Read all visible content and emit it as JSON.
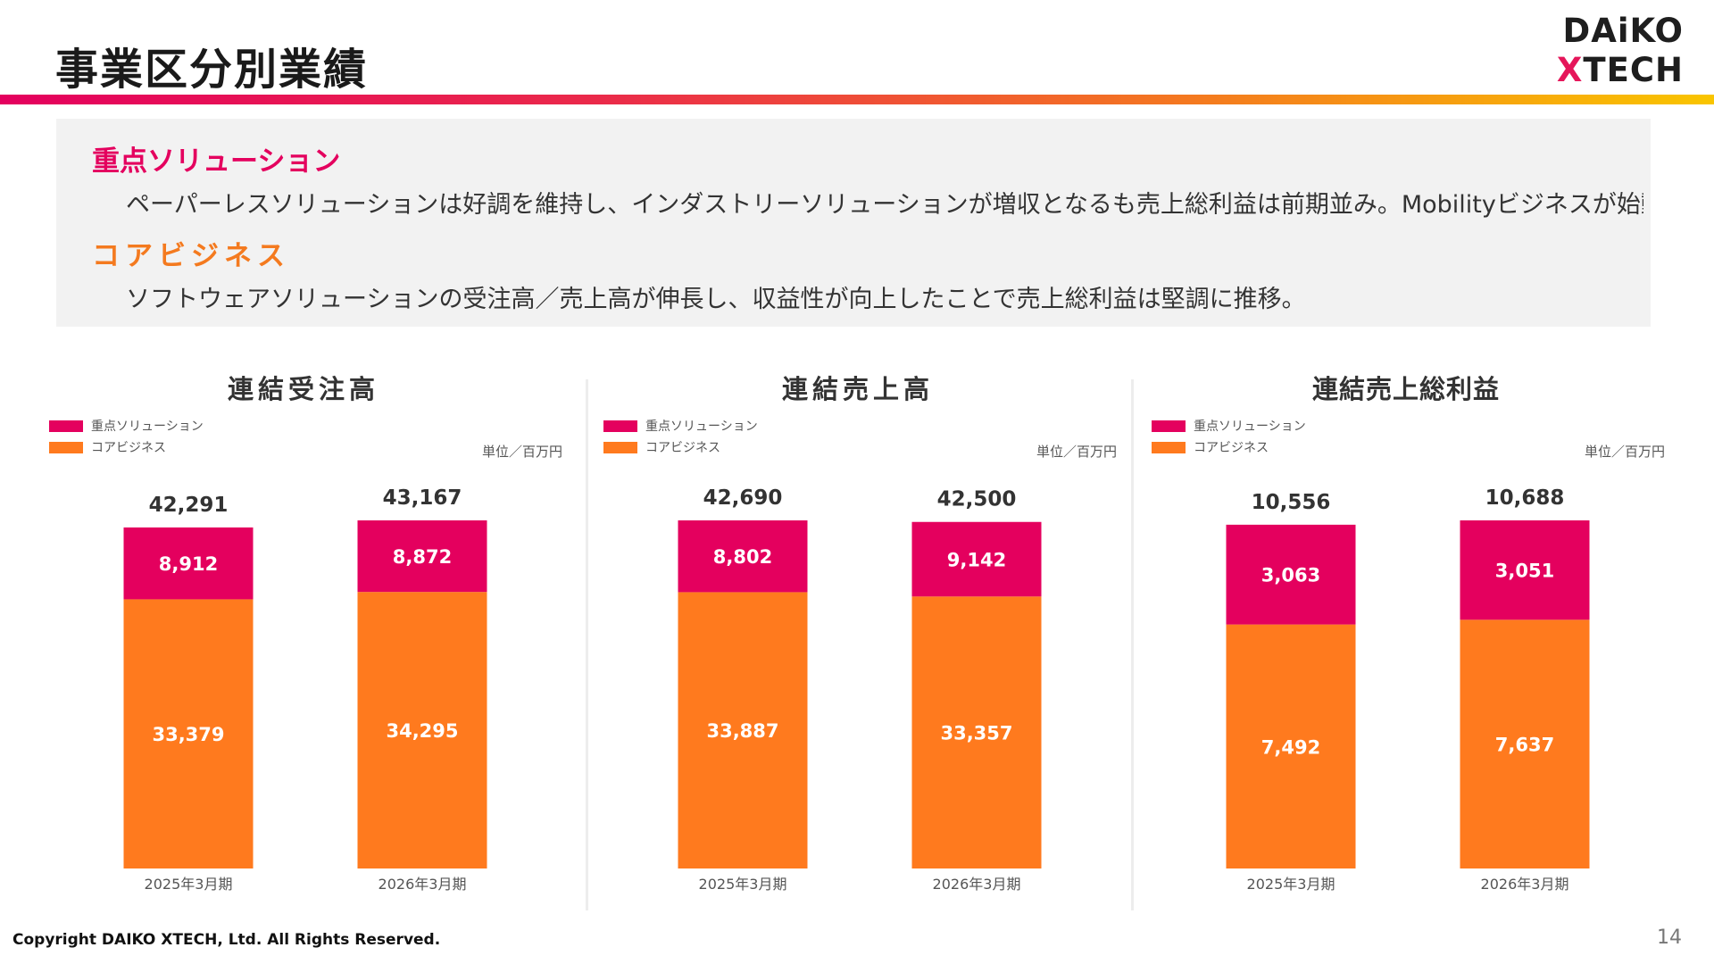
{
  "header": {
    "title": "事業区分別業績"
  },
  "logo": {
    "line1": "DAiKO",
    "line2_accent": "X",
    "line2_rest": "TECH"
  },
  "summary": {
    "focus_title": "重点ソリューション",
    "focus_text": "ペーパーレスソリューションは好調を維持し、インダストリーソリューションが増収となるも売上総利益は前期並み。Mobilityビジネスが始動。",
    "core_title": "コアビジネス",
    "core_text": "ソフトウェアソリューションの受注高／売上高が伸長し、収益性が向上したことで売上総利益は堅調に推移。"
  },
  "footer": {
    "copyright": "Copyright DAIKO XTECH, Ltd. All Rights Reserved.",
    "page_number": "14"
  },
  "colors": {
    "focus": "#e4005e",
    "core": "#ff7a1e"
  },
  "chart_data": [
    {
      "type": "bar",
      "stacked": true,
      "title": "連結受注高",
      "unit": "単位／百万円",
      "categories": [
        "2025年3月期",
        "2026年3月期"
      ],
      "series": [
        {
          "name": "重点ソリューション",
          "values": [
            8912,
            8872
          ]
        },
        {
          "name": "コアビジネス",
          "values": [
            33379,
            34295
          ]
        }
      ],
      "totals": [
        42291,
        43167
      ],
      "legend": [
        "重点ソリューション",
        "コアビジネス"
      ],
      "legend_position": "top-left"
    },
    {
      "type": "bar",
      "stacked": true,
      "title": "連結売上高",
      "unit": "単位／百万円",
      "categories": [
        "2025年3月期",
        "2026年3月期"
      ],
      "series": [
        {
          "name": "重点ソリューション",
          "values": [
            8802,
            9142
          ]
        },
        {
          "name": "コアビジネス",
          "values": [
            33887,
            33357
          ]
        }
      ],
      "totals": [
        42690,
        42500
      ],
      "legend": [
        "重点ソリューション",
        "コアビジネス"
      ],
      "legend_position": "top-left"
    },
    {
      "type": "bar",
      "stacked": true,
      "title": "連結売上総利益",
      "unit": "単位／百万円",
      "categories": [
        "2025年3月期",
        "2026年3月期"
      ],
      "series": [
        {
          "name": "重点ソリューション",
          "values": [
            3063,
            3051
          ]
        },
        {
          "name": "コアビジネス",
          "values": [
            7492,
            7637
          ]
        }
      ],
      "totals": [
        10556,
        10688
      ],
      "legend": [
        "重点ソリューション",
        "コアビジネス"
      ],
      "legend_position": "top-left"
    }
  ]
}
